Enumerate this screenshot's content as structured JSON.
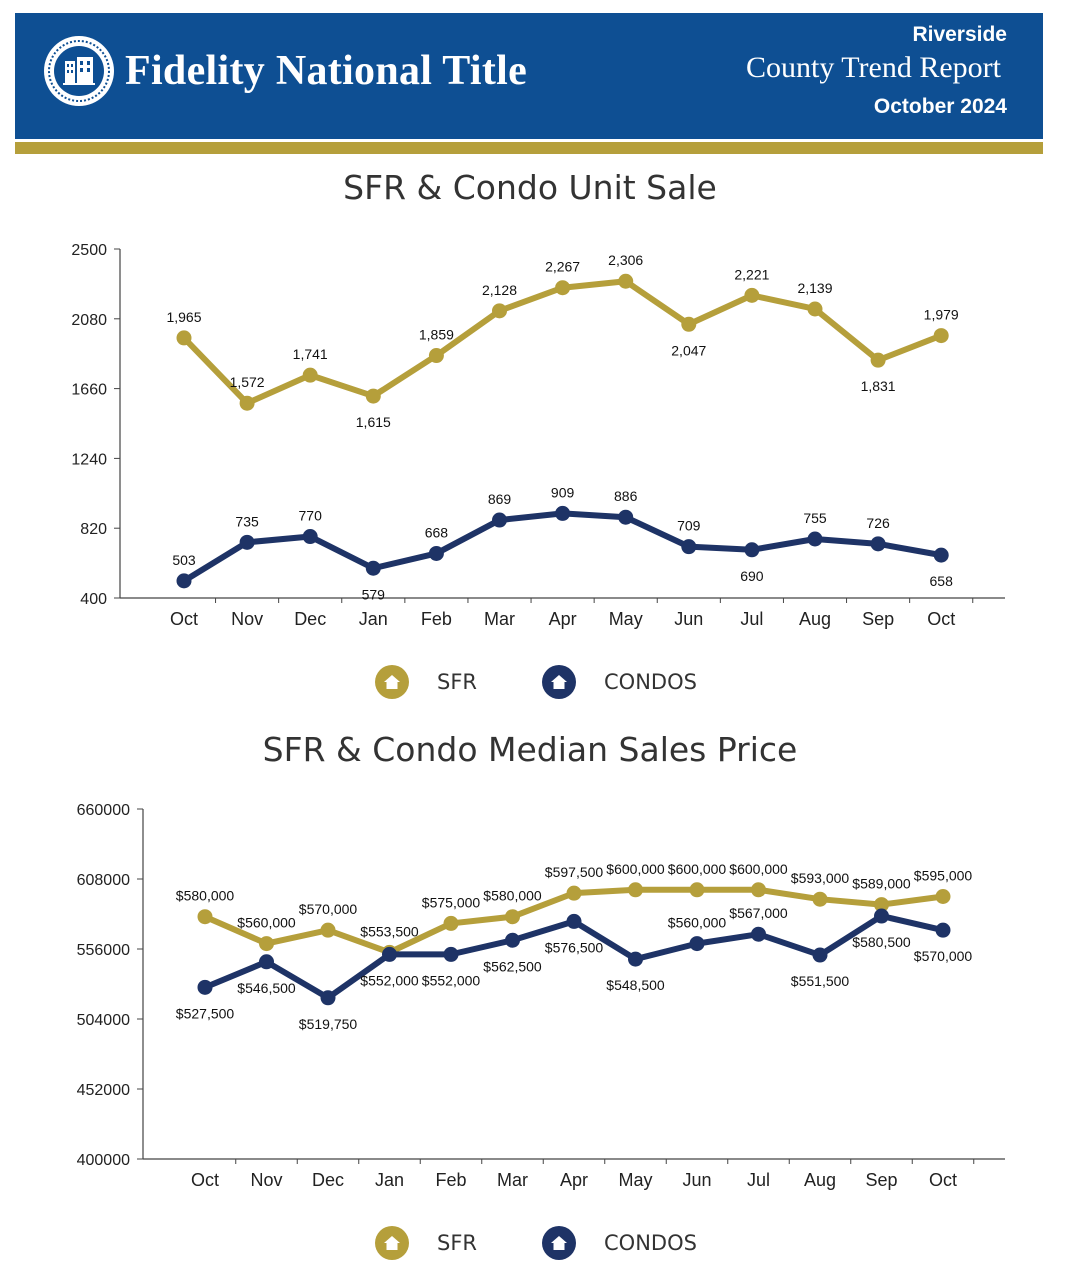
{
  "header": {
    "brand": "Fidelity National Title",
    "region": "Riverside",
    "report_title": "County Trend Report",
    "report_date": "October 2024"
  },
  "colors": {
    "header_bg": "#0e4f93",
    "gold": "#b59f3b",
    "navy": "#1e3366"
  },
  "legend": {
    "sfr_label": "SFR",
    "condo_label": "CONDOS",
    "sfr_icon": "house-icon",
    "condo_icon": "house-icon"
  },
  "chart_data": [
    {
      "type": "line",
      "title": "SFR & Condo Unit Sale",
      "categories": [
        "Oct",
        "Nov",
        "Dec",
        "Jan",
        "Feb",
        "Mar",
        "Apr",
        "May",
        "Jun",
        "Jul",
        "Aug",
        "Sep",
        "Oct"
      ],
      "yticks": [
        "2500",
        "2080",
        "1660",
        "1240",
        "820",
        "400"
      ],
      "ylim": [
        400,
        2500
      ],
      "series": [
        {
          "name": "SFR",
          "color": "#b59f3b",
          "values": [
            1965,
            1572,
            1741,
            1615,
            1859,
            2128,
            2267,
            2306,
            2047,
            2221,
            2139,
            1831,
            1979
          ],
          "labels": [
            "1,965",
            "1,572",
            "1,741",
            "1,615",
            "1,859",
            "2,128",
            "2,267",
            "2,306",
            "2,047",
            "2,221",
            "2,139",
            "1,831",
            "1,979"
          ]
        },
        {
          "name": "CONDOS",
          "color": "#1e3366",
          "values": [
            503,
            735,
            770,
            579,
            668,
            869,
            909,
            886,
            709,
            690,
            755,
            726,
            658
          ],
          "labels": [
            "503",
            "735",
            "770",
            "579",
            "668",
            "869",
            "909",
            "886",
            "709",
            "690",
            "755",
            "726",
            "658"
          ]
        }
      ]
    },
    {
      "type": "line",
      "title": "SFR & Condo Median Sales Price",
      "categories": [
        "Oct",
        "Nov",
        "Dec",
        "Jan",
        "Feb",
        "Mar",
        "Apr",
        "May",
        "Jun",
        "Jul",
        "Aug",
        "Sep",
        "Oct"
      ],
      "yticks": [
        "660000",
        "608000",
        "556000",
        "504000",
        "452000",
        "400000"
      ],
      "ylim": [
        400000,
        660000
      ],
      "series": [
        {
          "name": "SFR",
          "color": "#b59f3b",
          "values": [
            580000,
            560000,
            570000,
            553500,
            575000,
            580000,
            597500,
            600000,
            600000,
            600000,
            593000,
            589000,
            595000
          ],
          "labels": [
            "$580,000",
            "$560,000",
            "$570,000",
            "$553,500",
            "$575,000",
            "$580,000",
            "$597,500",
            "$600,000",
            "$600,000",
            "$600,000",
            "$593,000",
            "$589,000",
            "$595,000"
          ]
        },
        {
          "name": "CONDOS",
          "color": "#1e3366",
          "values": [
            527500,
            546500,
            519750,
            552000,
            552000,
            562500,
            576500,
            548500,
            560000,
            567000,
            551500,
            580500,
            570000
          ],
          "labels": [
            "$527,500",
            "$546,500",
            "$519,750",
            "$552,000",
            "$552,000",
            "$562,500",
            "$576,500",
            "$548,500",
            "$560,000",
            "$567,000",
            "$551,500",
            "$580,500",
            "$570,000"
          ]
        }
      ]
    }
  ]
}
